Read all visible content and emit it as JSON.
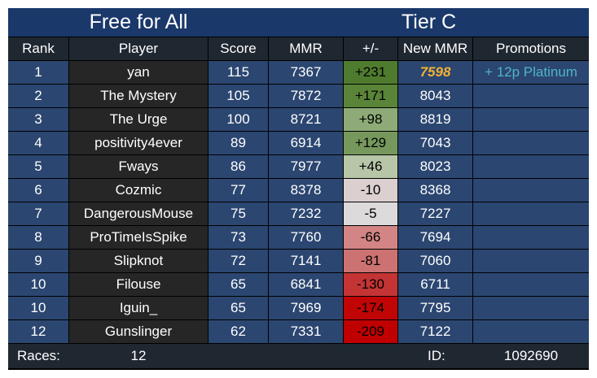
{
  "header": {
    "title": "Free for All",
    "tier": "Tier C"
  },
  "columns": [
    "Rank",
    "Player",
    "Score",
    "MMR",
    "+/-",
    "New MMR",
    "Promotions"
  ],
  "rows": [
    {
      "rank": "1",
      "player": "yan",
      "score": "115",
      "mmr": "7367",
      "delta": "+231",
      "delta_color": "#4f7b2f",
      "new_mmr": "7598",
      "highlight": true,
      "promotion": "+ 12p Platinum"
    },
    {
      "rank": "2",
      "player": "The Mystery",
      "score": "105",
      "mmr": "7872",
      "delta": "+171",
      "delta_color": "#5a8438",
      "new_mmr": "8043"
    },
    {
      "rank": "3",
      "player": "The Urge",
      "score": "100",
      "mmr": "8721",
      "delta": "+98",
      "delta_color": "#8eab77",
      "new_mmr": "8819"
    },
    {
      "rank": "4",
      "player": "positivity4ever",
      "score": "89",
      "mmr": "6914",
      "delta": "+129",
      "delta_color": "#76985d",
      "new_mmr": "7043"
    },
    {
      "rank": "5",
      "player": "Fways",
      "score": "86",
      "mmr": "7977",
      "delta": "+46",
      "delta_color": "#b8c6a8",
      "new_mmr": "8023"
    },
    {
      "rank": "6",
      "player": "Cozmic",
      "score": "77",
      "mmr": "8378",
      "delta": "-10",
      "delta_color": "#dccfcf",
      "new_mmr": "8368"
    },
    {
      "rank": "7",
      "player": "DangerousMouse",
      "score": "75",
      "mmr": "7232",
      "delta": "-5",
      "delta_color": "#dcdada",
      "new_mmr": "7227"
    },
    {
      "rank": "8",
      "player": "ProTimeIsSpike",
      "score": "73",
      "mmr": "7760",
      "delta": "-66",
      "delta_color": "#d38585",
      "new_mmr": "7694"
    },
    {
      "rank": "9",
      "player": "Slipknot",
      "score": "72",
      "mmr": "7141",
      "delta": "-81",
      "delta_color": "#cc7272",
      "new_mmr": "7060"
    },
    {
      "rank": "10",
      "player": "Filouse",
      "score": "65",
      "mmr": "6841",
      "delta": "-130",
      "delta_color": "#c43434",
      "new_mmr": "6711"
    },
    {
      "rank": "10",
      "player": "Iguin_",
      "score": "65",
      "mmr": "7969",
      "delta": "-174",
      "delta_color": "#c10505",
      "new_mmr": "7795"
    },
    {
      "rank": "12",
      "player": "Gunslinger",
      "score": "62",
      "mmr": "7331",
      "delta": "-209",
      "delta_color": "#c00000",
      "new_mmr": "7122"
    }
  ],
  "footer": {
    "races_label": "Races:",
    "races": "12",
    "id_label": "ID:",
    "id": "1092690"
  }
}
